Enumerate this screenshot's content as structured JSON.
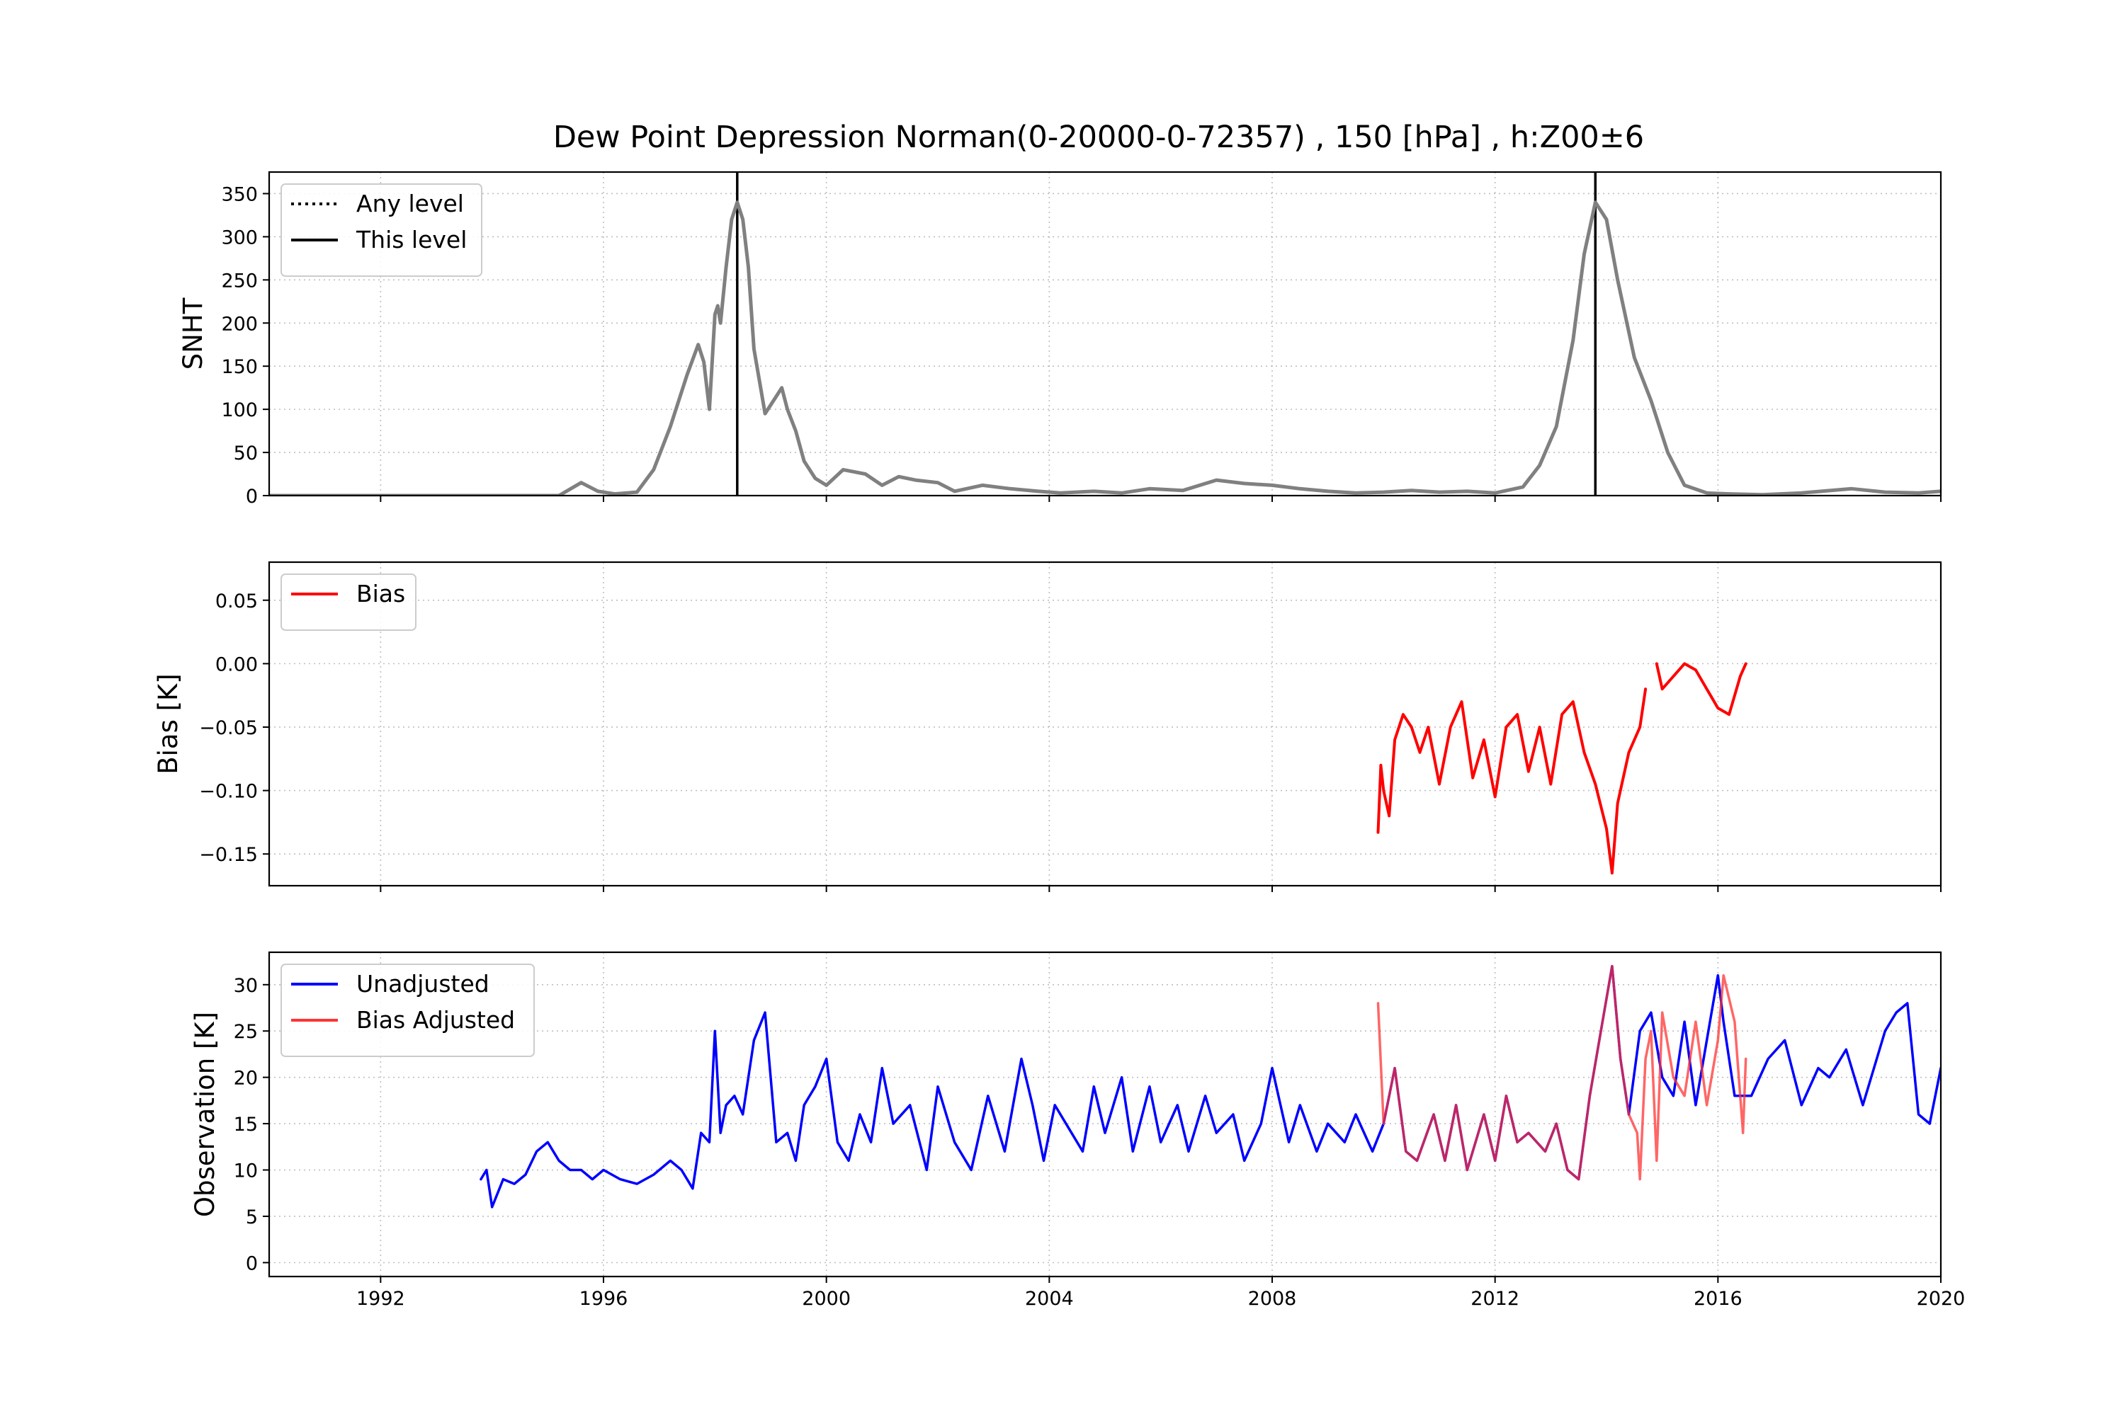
{
  "title": "Dew Point Depression Norman(0-20000-0-72357) , 150 [hPa] , h:Z00±6",
  "colors": {
    "snht": "#808080",
    "breaks": "#000000",
    "bias": "#ff0000",
    "unadjusted": "#0000ff",
    "adjusted": "#ff3333",
    "overlap": "#990055"
  },
  "chart_data": [
    {
      "type": "line",
      "ylabel": "SNHT",
      "xlim": [
        1990,
        2020
      ],
      "ylim": [
        0,
        375
      ],
      "yticks": [
        0,
        50,
        100,
        150,
        200,
        250,
        300,
        350
      ],
      "grid": true,
      "legend_position": "top-left",
      "legend": [
        {
          "label": "Any level",
          "style": "dotted"
        },
        {
          "label": "This level",
          "style": "solid"
        }
      ],
      "vertical_lines": [
        1998.4,
        2013.8
      ],
      "series": [
        {
          "x": [
            1990,
            1995.2,
            1995.6,
            1995.9,
            1996.2,
            1996.6,
            1996.9,
            1997.2,
            1997.5,
            1997.7,
            1997.8,
            1997.9,
            1998.0,
            1998.05,
            1998.1,
            1998.2,
            1998.3,
            1998.4,
            1998.5,
            1998.6,
            1998.7,
            1998.9,
            1999.1,
            1999.2,
            1999.3,
            1999.45,
            1999.6,
            1999.8,
            2000.0,
            2000.3,
            2000.7,
            2001.0,
            2001.3,
            2001.6,
            2002.0,
            2002.3,
            2002.8,
            2003.3,
            2003.8,
            2004.2,
            2004.8,
            2005.3,
            2005.8,
            2006.4,
            2007.0,
            2007.5,
            2008.0,
            2008.5,
            2009.0,
            2009.5,
            2010.0,
            2010.5,
            2011.0,
            2011.5,
            2012.0,
            2012.5,
            2012.8,
            2013.1,
            2013.4,
            2013.6,
            2013.8,
            2014.0,
            2014.2,
            2014.5,
            2014.8,
            2015.1,
            2015.4,
            2015.8,
            2016.2,
            2016.8,
            2017.5,
            2018.4,
            2019.0,
            2019.6,
            2020.0
          ],
          "y": [
            0,
            0,
            15,
            5,
            2,
            4,
            30,
            80,
            140,
            175,
            155,
            100,
            210,
            220,
            200,
            265,
            320,
            340,
            320,
            265,
            170,
            95,
            115,
            125,
            100,
            75,
            40,
            20,
            12,
            30,
            25,
            12,
            22,
            18,
            15,
            5,
            12,
            8,
            5,
            3,
            5,
            3,
            8,
            6,
            18,
            14,
            12,
            8,
            5,
            3,
            4,
            6,
            4,
            5,
            3,
            10,
            35,
            80,
            180,
            280,
            340,
            320,
            250,
            160,
            110,
            50,
            12,
            3,
            2,
            1,
            3,
            8,
            4,
            3,
            5
          ]
        }
      ]
    },
    {
      "type": "line",
      "ylabel": "Bias [K]",
      "xlim": [
        1990,
        2020
      ],
      "ylim": [
        -0.175,
        0.08
      ],
      "yticks": [
        0.05,
        0.0,
        -0.05,
        -0.1,
        -0.15
      ],
      "ytick_labels": [
        "0.05",
        "0.00",
        "−0.05",
        "−0.10",
        "−0.15"
      ],
      "grid": true,
      "legend_position": "top-left",
      "legend": [
        {
          "label": "Bias",
          "style": "solid"
        }
      ],
      "series": [
        {
          "name": "Bias",
          "x": [
            2009.9,
            2009.95,
            2010.0,
            2010.1,
            2010.2,
            2010.35,
            2010.5,
            2010.65,
            2010.8,
            2011.0,
            2011.2,
            2011.4,
            2011.6,
            2011.8,
            2012.0,
            2012.2,
            2012.4,
            2012.6,
            2012.8,
            2013.0,
            2013.2,
            2013.4,
            2013.6,
            2013.8,
            2014.0,
            2014.1,
            2014.2,
            2014.4,
            2014.6,
            2014.7
          ],
          "y": [
            -0.133,
            -0.08,
            -0.1,
            -0.12,
            -0.06,
            -0.04,
            -0.05,
            -0.07,
            -0.05,
            -0.095,
            -0.05,
            -0.03,
            -0.09,
            -0.06,
            -0.105,
            -0.05,
            -0.04,
            -0.085,
            -0.05,
            -0.095,
            -0.04,
            -0.03,
            -0.07,
            -0.095,
            -0.13,
            -0.165,
            -0.11,
            -0.07,
            -0.05,
            -0.02
          ]
        },
        {
          "name": "Bias",
          "x": [
            2014.9,
            2015.0,
            2015.2,
            2015.4,
            2015.6,
            2015.8,
            2016.0,
            2016.2,
            2016.4,
            2016.5
          ],
          "y": [
            0.0,
            -0.02,
            -0.01,
            0.0,
            -0.005,
            -0.02,
            -0.035,
            -0.04,
            -0.01,
            0.0
          ]
        }
      ]
    },
    {
      "type": "line",
      "ylabel": "Observation [K]",
      "xlim": [
        1990,
        2020
      ],
      "ylim": [
        -1.5,
        33.5
      ],
      "yticks": [
        0,
        5,
        10,
        15,
        20,
        25,
        30
      ],
      "xticks": [
        1992,
        1996,
        2000,
        2004,
        2008,
        2012,
        2016,
        2020
      ],
      "grid": true,
      "legend_position": "top-left",
      "legend": [
        {
          "label": "Unadjusted",
          "style": "solid"
        },
        {
          "label": "Bias Adjusted",
          "style": "solid"
        }
      ],
      "series": [
        {
          "name": "Unadjusted",
          "x": [
            1993.8,
            1993.9,
            1994.0,
            1994.2,
            1994.4,
            1994.6,
            1994.8,
            1995.0,
            1995.2,
            1995.4,
            1995.6,
            1995.8,
            1996.0,
            1996.3,
            1996.6,
            1996.9,
            1997.2,
            1997.4,
            1997.6,
            1997.75,
            1997.9,
            1998.0,
            1998.1,
            1998.2,
            1998.35,
            1998.5,
            1998.7,
            1998.9,
            1999.1,
            1999.3,
            1999.45,
            1999.6,
            1999.8,
            2000.0,
            2000.2,
            2000.4,
            2000.6,
            2000.8,
            2001.0,
            2001.2,
            2001.5,
            2001.8,
            2002.0,
            2002.3,
            2002.6,
            2002.9,
            2003.2,
            2003.5,
            2003.7,
            2003.9,
            2004.1,
            2004.4,
            2004.6,
            2004.8,
            2005.0,
            2005.3,
            2005.5,
            2005.8,
            2006.0,
            2006.3,
            2006.5,
            2006.8,
            2007.0,
            2007.3,
            2007.5,
            2007.8,
            2008.0,
            2008.3,
            2008.5,
            2008.8,
            2009.0,
            2009.3,
            2009.5,
            2009.8,
            2010.0,
            2010.2,
            2010.4,
            2010.6,
            2010.9,
            2011.1,
            2011.3,
            2011.5,
            2011.8,
            2012.0,
            2012.2,
            2012.4,
            2012.6,
            2012.9,
            2013.1,
            2013.3,
            2013.5,
            2013.7,
            2013.9,
            2014.1,
            2014.25,
            2014.4,
            2014.6,
            2014.8,
            2015.0,
            2015.2,
            2015.4,
            2015.6,
            2015.8,
            2016.0,
            2016.1,
            2016.3,
            2016.6,
            2016.9,
            2017.2,
            2017.5,
            2017.8,
            2018.0,
            2018.3,
            2018.6,
            2018.8,
            2019.0,
            2019.2,
            2019.4,
            2019.6,
            2019.8,
            2020.0
          ],
          "y": [
            9,
            10,
            6,
            9,
            8.5,
            9.5,
            12,
            13,
            11,
            10,
            10,
            9,
            10,
            9,
            8.5,
            9.5,
            11,
            10,
            8,
            14,
            13,
            25,
            14,
            17,
            18,
            16,
            24,
            27,
            13,
            14,
            11,
            17,
            19,
            22,
            13,
            11,
            16,
            13,
            21,
            15,
            17,
            10,
            19,
            13,
            10,
            18,
            12,
            22,
            17,
            11,
            17,
            14,
            12,
            19,
            14,
            20,
            12,
            19,
            13,
            17,
            12,
            18,
            14,
            16,
            11,
            15,
            21,
            13,
            17,
            12,
            15,
            13,
            16,
            12,
            15,
            21,
            12,
            11,
            16,
            11,
            17,
            10,
            16,
            11,
            18,
            13,
            14,
            12,
            15,
            10,
            9,
            18,
            25,
            32,
            22,
            16,
            25,
            27,
            20,
            18,
            26,
            17,
            24,
            31,
            26,
            18,
            18,
            22,
            24,
            17,
            21,
            20,
            23,
            17,
            21,
            25,
            27,
            28,
            16,
            15,
            21
          ]
        },
        {
          "name": "Bias Adjusted",
          "x": [
            2009.9,
            2010.0,
            2010.2,
            2010.4,
            2010.6,
            2010.9,
            2011.1,
            2011.3,
            2011.5,
            2011.8,
            2012.0,
            2012.2,
            2012.4,
            2012.6,
            2012.9,
            2013.1,
            2013.3,
            2013.5,
            2013.7,
            2013.9,
            2014.1,
            2014.25,
            2014.4,
            2014.55,
            2014.6,
            2014.7,
            2014.8,
            2014.9,
            2015.0,
            2015.2,
            2015.4,
            2015.6,
            2015.8,
            2016.0,
            2016.1,
            2016.3,
            2016.45,
            2016.5
          ],
          "y": [
            28,
            15,
            21,
            12,
            11,
            16,
            11,
            17,
            10,
            16,
            11,
            18,
            13,
            14,
            12,
            15,
            10,
            9,
            18,
            25,
            32,
            22,
            16,
            14,
            9,
            22,
            25,
            11,
            27,
            20,
            18,
            26,
            17,
            24,
            31,
            26,
            14,
            22
          ]
        }
      ]
    }
  ]
}
